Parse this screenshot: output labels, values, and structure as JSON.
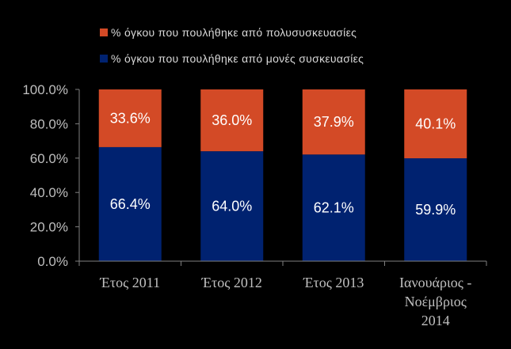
{
  "chart_data": {
    "type": "bar",
    "stacked": true,
    "categories": [
      [
        "Έτος 2011"
      ],
      [
        "Έτος 2012"
      ],
      [
        "Έτος 2013"
      ],
      [
        "Ιανουάριος -",
        "Νοέμβριος",
        "2014"
      ]
    ],
    "series": [
      {
        "name": "% όγκου που πουλήθηκε από μονές συσκευασίες",
        "color": "#002270",
        "values": [
          66.4,
          64.0,
          62.1,
          59.9
        ],
        "labels": [
          "66.4%",
          "64.0%",
          "62.1%",
          "59.9%"
        ]
      },
      {
        "name": "% όγκου που πουλήθηκε από πολυσυσκευασίες",
        "color": "#d34a26",
        "values": [
          33.6,
          36.0,
          37.9,
          40.1
        ],
        "labels": [
          "33.6%",
          "36.0%",
          "37.9%",
          "40.1%"
        ]
      }
    ],
    "legend_order": [
      1,
      0
    ],
    "legend_position": "top",
    "ylim": [
      0,
      100
    ],
    "yticks": [
      0,
      20,
      40,
      60,
      80,
      100
    ],
    "ytick_labels": [
      "0.0%",
      "20.0%",
      "40.0%",
      "60.0%",
      "80.0%",
      "100.0%"
    ],
    "grid": false,
    "xlabel": "",
    "ylabel": "",
    "title": ""
  }
}
